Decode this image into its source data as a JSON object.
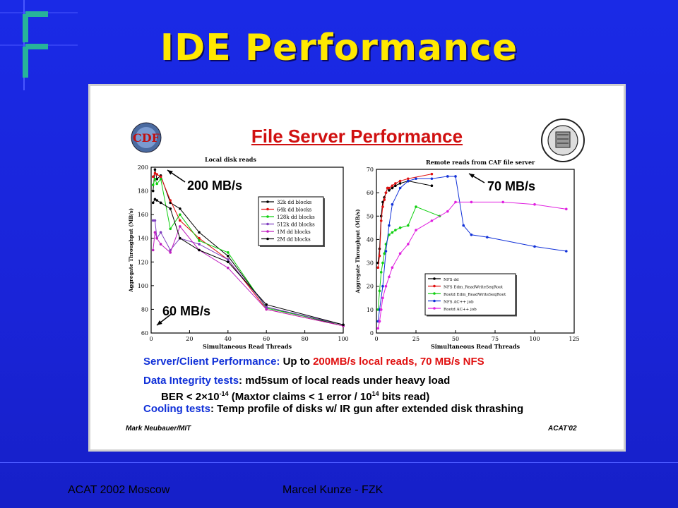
{
  "slide": {
    "title": "IDE Performance",
    "footer_left": "ACAT 2002 Moscow",
    "footer_center": "Marcel Kunze - FZK"
  },
  "panel": {
    "title": "File Server Performance",
    "left_logo_text": "CDF",
    "annotations": {
      "left_top": "200 MB/s",
      "left_bottom": "60 MB/s",
      "right_top": "70 MB/s"
    },
    "lines": {
      "l1_a": "Server/Client Performance:",
      "l1_b": " Up to ",
      "l1_c": "200MB/s local reads, 70 MB/s NFS",
      "l2_a": "Data Integrity tests",
      "l2_b": ": md5sum of local reads under heavy load",
      "l3": "BER < 2×10",
      "l3_exp": "-14",
      "l3_rest": " (Maxtor claims < 1 error / 10",
      "l3_exp2": "14",
      "l3_end": " bits read)",
      "l4_a": "Cooling tests",
      "l4_b": ": Temp profile of disks w/ IR gun after extended disk thrashing"
    },
    "credit_left": "Mark Neubauer/MIT",
    "credit_right": "ACAT'02"
  },
  "colors": {
    "background": "#1a26e0",
    "title": "#ffe800",
    "panel_title": "#d01010",
    "text_blue": "#1030d8",
    "text_red": "#e01010"
  },
  "chart_data": [
    {
      "type": "line",
      "title": "Local disk reads",
      "xlabel": "Simultaneous Read Threads",
      "ylabel": "Aggregate Throughput (MB/s)",
      "xlim": [
        0,
        100
      ],
      "ylim": [
        60,
        200
      ],
      "xticks": [
        0,
        20,
        40,
        60,
        80,
        100
      ],
      "yticks": [
        60,
        80,
        100,
        120,
        140,
        160,
        180,
        200
      ],
      "legend_position": "top-right",
      "series": [
        {
          "name": "32k dd blocks",
          "color": "#000000",
          "x": [
            1,
            2,
            3,
            5,
            10,
            15,
            25,
            40,
            60,
            100
          ],
          "y": [
            180,
            198,
            190,
            193,
            170,
            165,
            145,
            125,
            82,
            66
          ]
        },
        {
          "name": "64k dd blocks",
          "color": "#e01010",
          "x": [
            1,
            2,
            3,
            5,
            10,
            15,
            25,
            40,
            60,
            100
          ],
          "y": [
            192,
            195,
            194,
            192,
            172,
            155,
            140,
            122,
            80,
            66
          ]
        },
        {
          "name": "128k dd blocks",
          "color": "#10d010",
          "x": [
            1,
            2,
            3,
            5,
            10,
            15,
            25,
            40,
            60,
            100
          ],
          "y": [
            185,
            190,
            186,
            190,
            148,
            160,
            138,
            128,
            81,
            67
          ]
        },
        {
          "name": "512k dd blocks",
          "color": "#8040c0",
          "x": [
            1,
            2,
            3,
            5,
            10,
            15,
            25,
            40,
            60,
            100
          ],
          "y": [
            155,
            155,
            140,
            145,
            130,
            140,
            135,
            122,
            82,
            67
          ]
        },
        {
          "name": "1M dd blocks",
          "color": "#c020c0",
          "x": [
            1,
            2,
            3,
            5,
            10,
            15,
            25,
            40,
            60,
            100
          ],
          "y": [
            130,
            145,
            140,
            135,
            128,
            150,
            130,
            115,
            80,
            66
          ]
        },
        {
          "name": "2M dd blocks",
          "color": "#000000",
          "x": [
            1,
            2,
            3,
            5,
            10,
            15,
            25,
            40,
            60,
            100
          ],
          "y": [
            170,
            173,
            172,
            170,
            165,
            140,
            130,
            120,
            84,
            67
          ]
        }
      ]
    },
    {
      "type": "line",
      "title": "Remote reads from CAF file server",
      "xlabel": "Simultaneous Read Threads",
      "ylabel": "Aggregate Throughput (MB/s)",
      "xlim": [
        0,
        125
      ],
      "ylim": [
        0,
        70
      ],
      "xticks": [
        0,
        25,
        50,
        75,
        100,
        125
      ],
      "yticks": [
        0,
        10,
        20,
        30,
        40,
        50,
        60,
        70
      ],
      "legend_position": "bottom-right",
      "series": [
        {
          "name": "NFS dd",
          "color": "#000000",
          "x": [
            1,
            2,
            3,
            4,
            5,
            6,
            7,
            8,
            10,
            12,
            15,
            20,
            35
          ],
          "y": [
            30,
            36,
            50,
            56,
            58,
            60,
            62,
            61,
            62,
            63,
            64,
            65,
            63
          ]
        },
        {
          "name": "NFS Edm_ReadWriteSeqRoot",
          "color": "#e01010",
          "x": [
            1,
            2,
            3,
            4,
            5,
            6,
            7,
            8,
            10,
            12,
            15,
            20,
            35
          ],
          "y": [
            28,
            33,
            48,
            54,
            57,
            60,
            62,
            62,
            63,
            64,
            65,
            66,
            68
          ]
        },
        {
          "name": "Rootd Edm_ReadWriteSeqRoot",
          "color": "#10d010",
          "x": [
            1,
            2,
            3,
            4,
            5,
            6,
            8,
            10,
            12,
            15,
            20,
            25,
            40
          ],
          "y": [
            10,
            18,
            26,
            30,
            34,
            38,
            42,
            43,
            44,
            45,
            46,
            54,
            50
          ]
        },
        {
          "name": "NFS AC++ job",
          "color": "#1030d8",
          "x": [
            1,
            2,
            4,
            6,
            8,
            10,
            15,
            20,
            25,
            35,
            45,
            50,
            55,
            60,
            70,
            100,
            120
          ],
          "y": [
            5,
            10,
            20,
            35,
            46,
            55,
            62,
            65,
            66,
            66,
            67,
            67,
            46,
            42,
            41,
            37,
            35
          ]
        },
        {
          "name": "Rootd AC++ job",
          "color": "#e020e0",
          "x": [
            1,
            2,
            3,
            4,
            6,
            8,
            10,
            15,
            20,
            25,
            35,
            45,
            50,
            60,
            80,
            100,
            120
          ],
          "y": [
            2,
            5,
            10,
            15,
            20,
            24,
            28,
            34,
            38,
            44,
            48,
            52,
            56,
            56,
            56,
            55,
            53
          ]
        }
      ]
    }
  ]
}
